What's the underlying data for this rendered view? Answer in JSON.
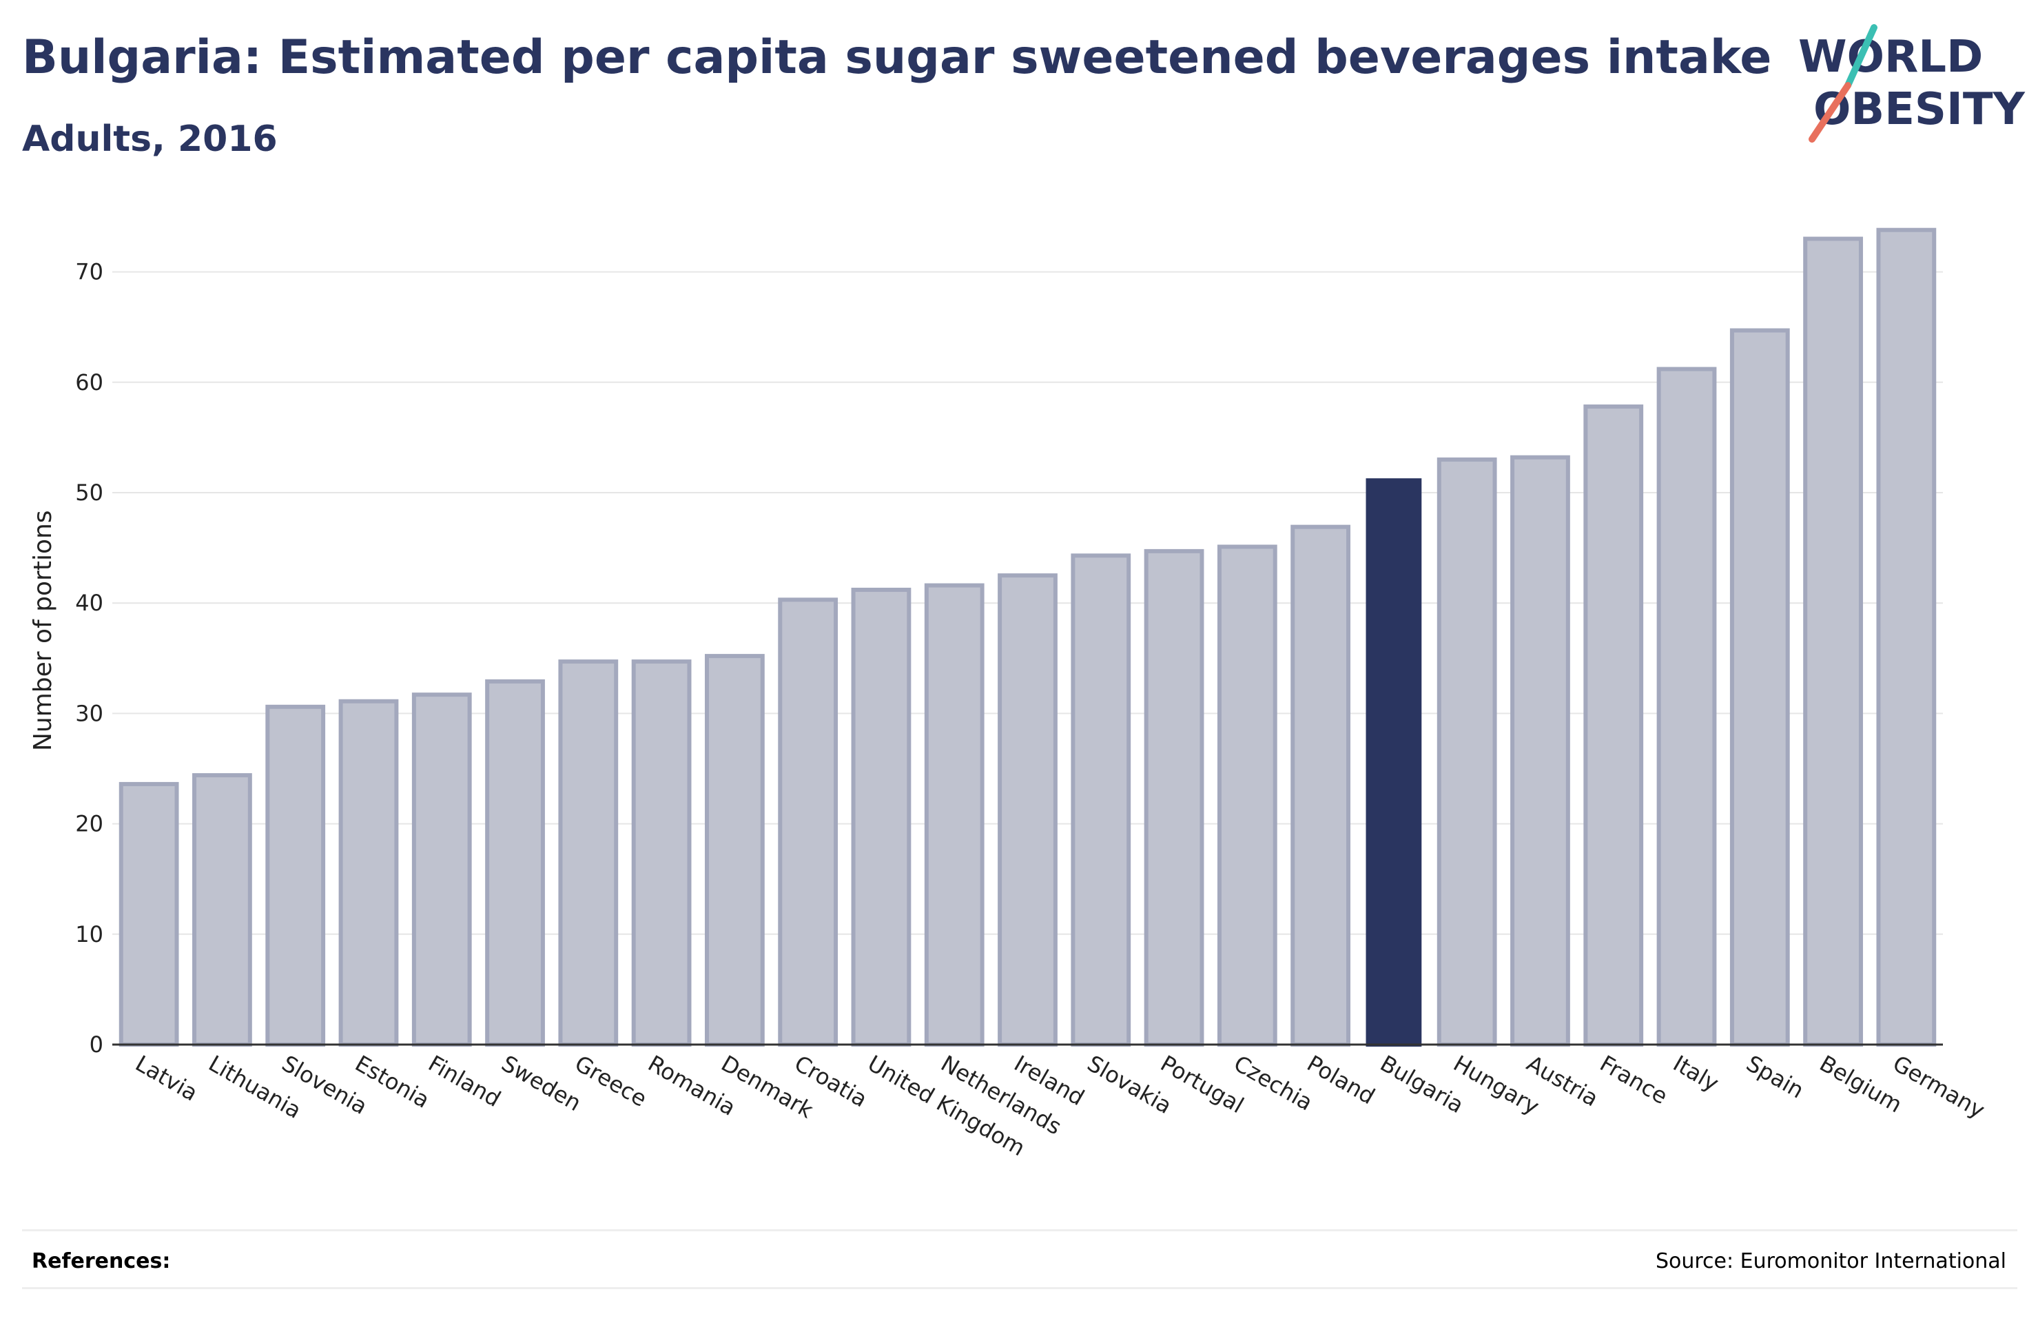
{
  "header": {
    "title": "Bulgaria: Estimated per capita sugar sweetened beverages intake",
    "subtitle": "Adults, 2016"
  },
  "logo": {
    "line1": "WORLD",
    "line2": "OBESITY"
  },
  "footer": {
    "references_label": "References:",
    "source_text": "Source: Euromonitor International"
  },
  "colors": {
    "highlight": "#2a3560",
    "bar_fill": "#bfc2cf",
    "bar_stroke": "#a3a8bd",
    "title": "#2a3560",
    "logo_teal": "#3bbfb3",
    "logo_coral": "#e8705d"
  },
  "chart_data": {
    "type": "bar",
    "title": "Bulgaria: Estimated per capita sugar sweetened beverages intake",
    "subtitle": "Adults, 2016",
    "xlabel": "",
    "ylabel": "Number of portions",
    "ylim": [
      0,
      75
    ],
    "yticks": [
      0,
      10,
      20,
      30,
      40,
      50,
      60,
      70
    ],
    "grid": true,
    "highlight": "Bulgaria",
    "categories": [
      "Latvia",
      "Lithuania",
      "Slovenia",
      "Estonia",
      "Finland",
      "Sweden",
      "Greece",
      "Romania",
      "Denmark",
      "Croatia",
      "United Kingdom",
      "Netherlands",
      "Ireland",
      "Slovakia",
      "Portugal",
      "Czechia",
      "Poland",
      "Bulgaria",
      "Hungary",
      "Austria",
      "France",
      "Italy",
      "Spain",
      "Belgium",
      "Germany"
    ],
    "values": [
      23.6,
      24.4,
      30.6,
      31.1,
      31.7,
      32.9,
      34.7,
      34.7,
      35.2,
      40.3,
      41.2,
      41.6,
      42.5,
      44.3,
      44.7,
      45.1,
      46.9,
      51.3,
      53.0,
      53.2,
      57.8,
      61.2,
      64.7,
      73.0,
      73.8
    ]
  }
}
